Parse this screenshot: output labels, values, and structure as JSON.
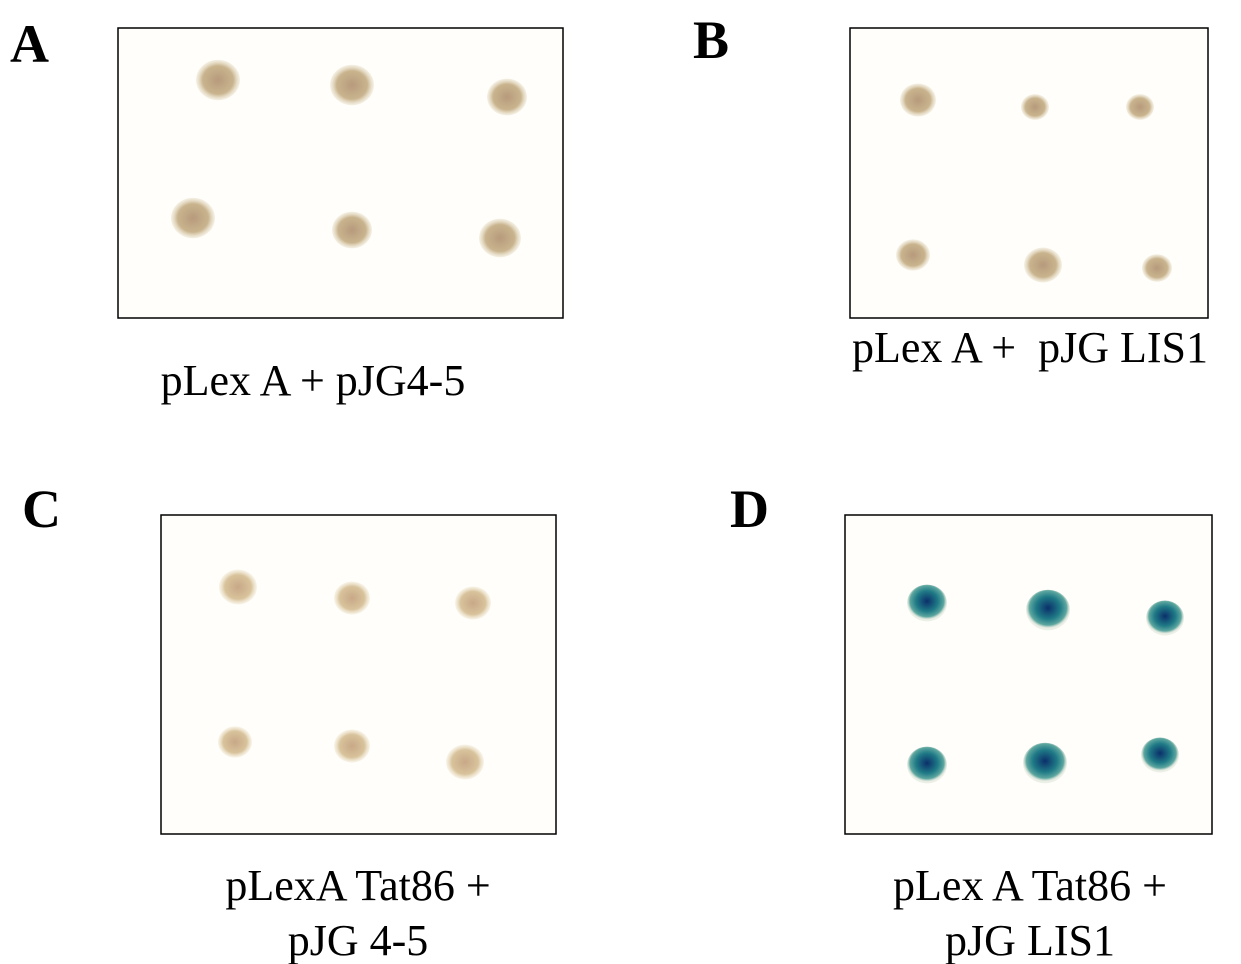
{
  "panels": [
    {
      "letter": "A",
      "caption": [
        "pLex A + pJG4-5"
      ]
    },
    {
      "letter": "B",
      "caption": [
        "pLex A +  pJG LIS1"
      ]
    },
    {
      "letter": "C",
      "caption": [
        "pLexA Tat86 +",
        "pJG 4-5"
      ]
    },
    {
      "letter": "D",
      "caption": [
        "pLex A Tat86 +",
        "pJG LIS1"
      ]
    }
  ]
}
